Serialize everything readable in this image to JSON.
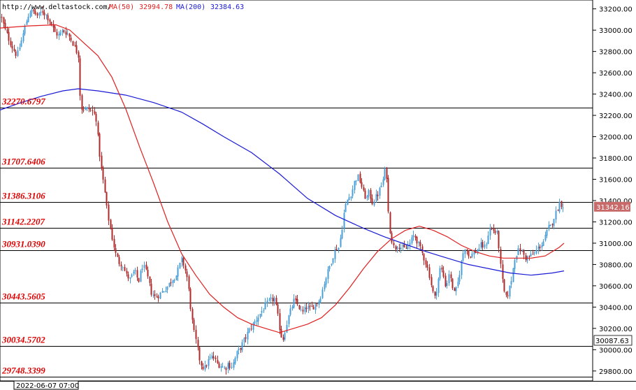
{
  "header": {
    "url": "http://www.deltastock.com/",
    "ma50_label": "MA(50)",
    "ma50_value": "32994.78",
    "ma200_label": "MA(200)",
    "ma200_value": "32384.63"
  },
  "footer": {
    "timestamp": "2022-06-07 07:00"
  },
  "colors": {
    "bull": "#4a9fd8",
    "bear": "#b02a2a",
    "ma50": "#e02020",
    "ma200": "#1a1ad6",
    "level_label": "#e00000",
    "current_price_bg": "#c96a6a"
  },
  "chart_data": {
    "type": "candlestick",
    "y_range": [
      29720,
      33270
    ],
    "y_ticks": [
      "33200.00",
      "33000.00",
      "32800.00",
      "32600.00",
      "32400.00",
      "32200.00",
      "32000.00",
      "31800.00",
      "31600.00",
      "31400.00",
      "31200.00",
      "31000.00",
      "30800.00",
      "30600.00",
      "30400.00",
      "30200.00",
      "30000.00",
      "29800.00"
    ],
    "levels": [
      "32270.6797",
      "31707.6406",
      "31386.3106",
      "31142.2207",
      "30931.0390",
      "30443.5605",
      "30034.5702",
      "29748.3399"
    ],
    "current_price": "31342.16",
    "low_marker": "30087.63",
    "close_path": [
      [
        0,
        33150
      ],
      [
        6,
        33020
      ],
      [
        12,
        32920
      ],
      [
        18,
        32830
      ],
      [
        24,
        32760
      ],
      [
        30,
        32900
      ],
      [
        36,
        33050
      ],
      [
        42,
        33180
      ],
      [
        48,
        33170
      ],
      [
        54,
        33130
      ],
      [
        60,
        33180
      ],
      [
        66,
        33140
      ],
      [
        72,
        33080
      ],
      [
        78,
        32980
      ],
      [
        84,
        32950
      ],
      [
        90,
        33000
      ],
      [
        96,
        32970
      ],
      [
        100,
        32930
      ],
      [
        104,
        32880
      ],
      [
        108,
        32820
      ],
      [
        112,
        32760
      ],
      [
        115,
        32270
      ],
      [
        121,
        32260
      ],
      [
        127,
        32260
      ],
      [
        133,
        32230
      ],
      [
        137,
        32180
      ],
      [
        141,
        31900
      ],
      [
        145,
        31680
      ],
      [
        149,
        31520
      ],
      [
        153,
        31300
      ],
      [
        157,
        31150
      ],
      [
        161,
        31020
      ],
      [
        165,
        30900
      ],
      [
        170,
        30820
      ],
      [
        175,
        30800
      ],
      [
        180,
        30700
      ],
      [
        186,
        30660
      ],
      [
        192,
        30740
      ],
      [
        198,
        30640
      ],
      [
        204,
        30800
      ],
      [
        210,
        30700
      ],
      [
        216,
        30540
      ],
      [
        222,
        30490
      ],
      [
        228,
        30520
      ],
      [
        234,
        30560
      ],
      [
        240,
        30600
      ],
      [
        246,
        30660
      ],
      [
        252,
        30700
      ],
      [
        256,
        30780
      ],
      [
        260,
        30850
      ],
      [
        264,
        30760
      ],
      [
        268,
        30660
      ],
      [
        272,
        30420
      ],
      [
        276,
        30200
      ],
      [
        280,
        30080
      ],
      [
        286,
        29880
      ],
      [
        292,
        29820
      ],
      [
        298,
        29900
      ],
      [
        304,
        29940
      ],
      [
        310,
        29870
      ],
      [
        316,
        29850
      ],
      [
        322,
        29820
      ],
      [
        326,
        29870
      ],
      [
        330,
        29840
      ],
      [
        334,
        29880
      ],
      [
        338,
        29960
      ],
      [
        342,
        30000
      ],
      [
        346,
        30050
      ],
      [
        350,
        30100
      ],
      [
        356,
        30180
      ],
      [
        362,
        30240
      ],
      [
        368,
        30300
      ],
      [
        374,
        30360
      ],
      [
        380,
        30420
      ],
      [
        386,
        30460
      ],
      [
        392,
        30480
      ],
      [
        396,
        30360
      ],
      [
        400,
        30200
      ],
      [
        404,
        30080
      ],
      [
        408,
        30200
      ],
      [
        412,
        30300
      ],
      [
        416,
        30380
      ],
      [
        420,
        30460
      ],
      [
        426,
        30420
      ],
      [
        432,
        30340
      ],
      [
        438,
        30400
      ],
      [
        444,
        30380
      ],
      [
        450,
        30420
      ],
      [
        456,
        30460
      ],
      [
        460,
        30540
      ],
      [
        464,
        30640
      ],
      [
        468,
        30720
      ],
      [
        472,
        30800
      ],
      [
        476,
        30880
      ],
      [
        480,
        30950
      ],
      [
        484,
        30960
      ],
      [
        488,
        31100
      ],
      [
        492,
        31300
      ],
      [
        496,
        31400
      ],
      [
        500,
        31440
      ],
      [
        504,
        31500
      ],
      [
        508,
        31600
      ],
      [
        512,
        31620
      ],
      [
        516,
        31560
      ],
      [
        520,
        31460
      ],
      [
        524,
        31420
      ],
      [
        528,
        31480
      ],
      [
        532,
        31380
      ],
      [
        536,
        31420
      ],
      [
        540,
        31460
      ],
      [
        544,
        31520
      ],
      [
        548,
        31600
      ],
      [
        552,
        31740
      ],
      [
        556,
        31200
      ],
      [
        560,
        31040
      ],
      [
        564,
        30940
      ],
      [
        568,
        30990
      ],
      [
        574,
        30960
      ],
      [
        580,
        30940
      ],
      [
        586,
        31000
      ],
      [
        592,
        31080
      ],
      [
        598,
        31000
      ],
      [
        604,
        30900
      ],
      [
        610,
        30800
      ],
      [
        614,
        30700
      ],
      [
        618,
        30560
      ],
      [
        622,
        30480
      ],
      [
        626,
        30640
      ],
      [
        630,
        30780
      ],
      [
        634,
        30700
      ],
      [
        638,
        30580
      ],
      [
        642,
        30720
      ],
      [
        646,
        30620
      ],
      [
        650,
        30520
      ],
      [
        654,
        30600
      ],
      [
        658,
        30750
      ],
      [
        662,
        30900
      ],
      [
        666,
        30980
      ],
      [
        670,
        30880
      ],
      [
        676,
        30900
      ],
      [
        682,
        30930
      ],
      [
        688,
        30980
      ],
      [
        694,
        30960
      ],
      [
        700,
        31140
      ],
      [
        706,
        31120
      ],
      [
        712,
        31080
      ],
      [
        716,
        30780
      ],
      [
        720,
        30560
      ],
      [
        724,
        30480
      ],
      [
        728,
        30560
      ],
      [
        732,
        30680
      ],
      [
        736,
        30860
      ],
      [
        740,
        30920
      ],
      [
        744,
        30940
      ],
      [
        748,
        30900
      ],
      [
        752,
        30860
      ],
      [
        758,
        30880
      ],
      [
        764,
        30900
      ],
      [
        770,
        30960
      ],
      [
        776,
        31000
      ],
      [
        780,
        31060
      ],
      [
        784,
        31140
      ],
      [
        788,
        31160
      ],
      [
        792,
        31240
      ],
      [
        796,
        31300
      ],
      [
        800,
        31380
      ],
      [
        804,
        31360
      ],
      [
        807,
        31342
      ]
    ],
    "ma50_path": [
      [
        0,
        33020
      ],
      [
        40,
        33040
      ],
      [
        80,
        33050
      ],
      [
        100,
        33000
      ],
      [
        120,
        32880
      ],
      [
        140,
        32760
      ],
      [
        160,
        32560
      ],
      [
        180,
        32260
      ],
      [
        200,
        31900
      ],
      [
        220,
        31560
      ],
      [
        240,
        31200
      ],
      [
        260,
        30900
      ],
      [
        280,
        30700
      ],
      [
        300,
        30520
      ],
      [
        320,
        30400
      ],
      [
        340,
        30300
      ],
      [
        360,
        30240
      ],
      [
        380,
        30200
      ],
      [
        400,
        30160
      ],
      [
        420,
        30200
      ],
      [
        440,
        30240
      ],
      [
        460,
        30300
      ],
      [
        480,
        30420
      ],
      [
        500,
        30580
      ],
      [
        520,
        30760
      ],
      [
        540,
        30920
      ],
      [
        560,
        31040
      ],
      [
        580,
        31120
      ],
      [
        600,
        31160
      ],
      [
        620,
        31120
      ],
      [
        640,
        31060
      ],
      [
        660,
        30980
      ],
      [
        680,
        30920
      ],
      [
        700,
        30880
      ],
      [
        720,
        30860
      ],
      [
        740,
        30860
      ],
      [
        760,
        30860
      ],
      [
        780,
        30880
      ],
      [
        800,
        30960
      ],
      [
        807,
        31000
      ]
    ],
    "ma200_path": [
      [
        0,
        32250
      ],
      [
        30,
        32320
      ],
      [
        60,
        32380
      ],
      [
        90,
        32430
      ],
      [
        112,
        32450
      ],
      [
        140,
        32430
      ],
      [
        180,
        32390
      ],
      [
        220,
        32320
      ],
      [
        260,
        32230
      ],
      [
        290,
        32120
      ],
      [
        320,
        32000
      ],
      [
        360,
        31850
      ],
      [
        400,
        31650
      ],
      [
        440,
        31420
      ],
      [
        480,
        31260
      ],
      [
        520,
        31140
      ],
      [
        550,
        31060
      ],
      [
        580,
        30990
      ],
      [
        610,
        30920
      ],
      [
        640,
        30860
      ],
      [
        670,
        30800
      ],
      [
        700,
        30760
      ],
      [
        730,
        30720
      ],
      [
        760,
        30700
      ],
      [
        790,
        30720
      ],
      [
        807,
        30740
      ]
    ]
  }
}
